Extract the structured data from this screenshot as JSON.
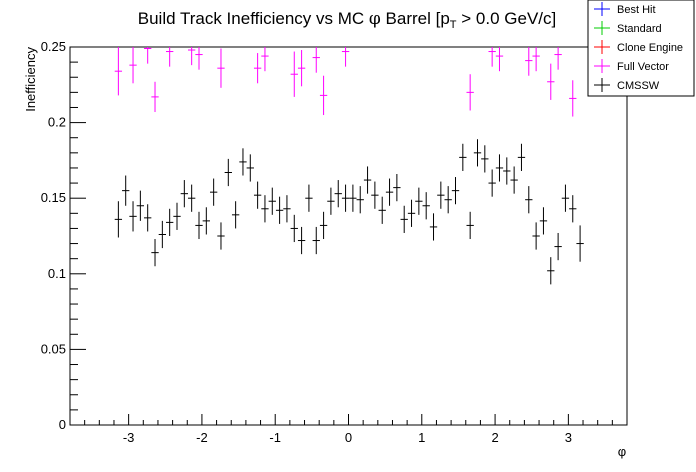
{
  "chart_data": {
    "type": "scatter",
    "title": {
      "main": "Build Track Inefficiency vs MC ",
      "phi": "φ",
      "mid": " Barrel [p",
      "sub": "T",
      "tail": " > 0.0 GeV/c]"
    },
    "xlabel": "φ",
    "ylabel": "Inefficiency",
    "xlim": [
      -3.8,
      3.8
    ],
    "ylim": [
      0,
      0.25
    ],
    "x_ticks": [
      -3,
      -2,
      -1,
      0,
      1,
      2,
      3
    ],
    "x_tick_labels": [
      "-3",
      "-2",
      "-1",
      "0",
      "1",
      "2",
      "3"
    ],
    "y_ticks": [
      0,
      0.05,
      0.1,
      0.15,
      0.2,
      0.25
    ],
    "y_tick_labels": [
      "0",
      "0.05",
      "0.1",
      "0.15",
      "0.2",
      "0.25"
    ],
    "grid": false,
    "legend_placement": "top-right",
    "series": [
      {
        "name": "Best Hit",
        "color": "#0000ff",
        "points": []
      },
      {
        "name": "Standard",
        "color": "#00cc00",
        "points": []
      },
      {
        "name": "Clone Engine",
        "color": "#ff0000",
        "points": []
      },
      {
        "name": "Full Vector",
        "color": "#ff00ff",
        "points": [
          {
            "x": -3.14,
            "y": 0.234,
            "yerr": 0.016
          },
          {
            "x": -2.94,
            "y": 0.238,
            "yerr": 0.012
          },
          {
            "x": -2.74,
            "y": 0.249,
            "yerr": 0.01
          },
          {
            "x": -2.64,
            "y": 0.217,
            "yerr": 0.01
          },
          {
            "x": -2.44,
            "y": 0.247,
            "yerr": 0.01
          },
          {
            "x": -2.14,
            "y": 0.248,
            "yerr": 0.01
          },
          {
            "x": -2.04,
            "y": 0.245,
            "yerr": 0.01
          },
          {
            "x": -1.74,
            "y": 0.236,
            "yerr": 0.013
          },
          {
            "x": -1.24,
            "y": 0.236,
            "yerr": 0.01
          },
          {
            "x": -1.14,
            "y": 0.244,
            "yerr": 0.01
          },
          {
            "x": -0.74,
            "y": 0.232,
            "yerr": 0.015
          },
          {
            "x": -0.64,
            "y": 0.236,
            "yerr": 0.012
          },
          {
            "x": -0.44,
            "y": 0.243,
            "yerr": 0.01
          },
          {
            "x": -0.34,
            "y": 0.218,
            "yerr": 0.013
          },
          {
            "x": -0.04,
            "y": 0.247,
            "yerr": 0.01
          },
          {
            "x": 1.66,
            "y": 0.22,
            "yerr": 0.012
          },
          {
            "x": 1.96,
            "y": 0.247,
            "yerr": 0.01
          },
          {
            "x": 2.06,
            "y": 0.244,
            "yerr": 0.01
          },
          {
            "x": 2.46,
            "y": 0.241,
            "yerr": 0.01
          },
          {
            "x": 2.56,
            "y": 0.244,
            "yerr": 0.01
          },
          {
            "x": 2.76,
            "y": 0.227,
            "yerr": 0.012
          },
          {
            "x": 2.86,
            "y": 0.245,
            "yerr": 0.01
          },
          {
            "x": 3.06,
            "y": 0.216,
            "yerr": 0.012
          }
        ]
      },
      {
        "name": "CMSSW",
        "color": "#000000",
        "points": [
          {
            "x": -3.14,
            "y": 0.136,
            "yerr": 0.012
          },
          {
            "x": -3.04,
            "y": 0.155,
            "yerr": 0.01
          },
          {
            "x": -2.94,
            "y": 0.138,
            "yerr": 0.01
          },
          {
            "x": -2.84,
            "y": 0.145,
            "yerr": 0.01
          },
          {
            "x": -2.74,
            "y": 0.137,
            "yerr": 0.009
          },
          {
            "x": -2.64,
            "y": 0.114,
            "yerr": 0.009
          },
          {
            "x": -2.54,
            "y": 0.126,
            "yerr": 0.009
          },
          {
            "x": -2.44,
            "y": 0.134,
            "yerr": 0.009
          },
          {
            "x": -2.34,
            "y": 0.138,
            "yerr": 0.009
          },
          {
            "x": -2.24,
            "y": 0.153,
            "yerr": 0.009
          },
          {
            "x": -2.14,
            "y": 0.15,
            "yerr": 0.009
          },
          {
            "x": -2.04,
            "y": 0.132,
            "yerr": 0.009
          },
          {
            "x": -1.94,
            "y": 0.135,
            "yerr": 0.009
          },
          {
            "x": -1.84,
            "y": 0.154,
            "yerr": 0.009
          },
          {
            "x": -1.74,
            "y": 0.125,
            "yerr": 0.009
          },
          {
            "x": -1.64,
            "y": 0.167,
            "yerr": 0.009
          },
          {
            "x": -1.54,
            "y": 0.139,
            "yerr": 0.009
          },
          {
            "x": -1.44,
            "y": 0.174,
            "yerr": 0.009
          },
          {
            "x": -1.34,
            "y": 0.17,
            "yerr": 0.009
          },
          {
            "x": -1.24,
            "y": 0.152,
            "yerr": 0.009
          },
          {
            "x": -1.14,
            "y": 0.143,
            "yerr": 0.009
          },
          {
            "x": -1.04,
            "y": 0.148,
            "yerr": 0.009
          },
          {
            "x": -0.94,
            "y": 0.142,
            "yerr": 0.009
          },
          {
            "x": -0.84,
            "y": 0.143,
            "yerr": 0.009
          },
          {
            "x": -0.74,
            "y": 0.13,
            "yerr": 0.009
          },
          {
            "x": -0.64,
            "y": 0.122,
            "yerr": 0.009
          },
          {
            "x": -0.54,
            "y": 0.15,
            "yerr": 0.009
          },
          {
            "x": -0.44,
            "y": 0.122,
            "yerr": 0.009
          },
          {
            "x": -0.34,
            "y": 0.132,
            "yerr": 0.009
          },
          {
            "x": -0.24,
            "y": 0.148,
            "yerr": 0.009
          },
          {
            "x": -0.14,
            "y": 0.153,
            "yerr": 0.009
          },
          {
            "x": -0.04,
            "y": 0.15,
            "yerr": 0.009
          },
          {
            "x": 0.06,
            "y": 0.15,
            "yerr": 0.009
          },
          {
            "x": 0.16,
            "y": 0.149,
            "yerr": 0.009
          },
          {
            "x": 0.26,
            "y": 0.162,
            "yerr": 0.009
          },
          {
            "x": 0.36,
            "y": 0.152,
            "yerr": 0.009
          },
          {
            "x": 0.46,
            "y": 0.142,
            "yerr": 0.009
          },
          {
            "x": 0.56,
            "y": 0.154,
            "yerr": 0.009
          },
          {
            "x": 0.66,
            "y": 0.157,
            "yerr": 0.009
          },
          {
            "x": 0.76,
            "y": 0.136,
            "yerr": 0.009
          },
          {
            "x": 0.86,
            "y": 0.14,
            "yerr": 0.009
          },
          {
            "x": 0.96,
            "y": 0.148,
            "yerr": 0.009
          },
          {
            "x": 1.06,
            "y": 0.145,
            "yerr": 0.009
          },
          {
            "x": 1.16,
            "y": 0.131,
            "yerr": 0.009
          },
          {
            "x": 1.26,
            "y": 0.152,
            "yerr": 0.009
          },
          {
            "x": 1.36,
            "y": 0.149,
            "yerr": 0.009
          },
          {
            "x": 1.46,
            "y": 0.155,
            "yerr": 0.009
          },
          {
            "x": 1.56,
            "y": 0.177,
            "yerr": 0.009
          },
          {
            "x": 1.66,
            "y": 0.132,
            "yerr": 0.009
          },
          {
            "x": 1.76,
            "y": 0.18,
            "yerr": 0.009
          },
          {
            "x": 1.86,
            "y": 0.176,
            "yerr": 0.009
          },
          {
            "x": 1.96,
            "y": 0.16,
            "yerr": 0.009
          },
          {
            "x": 2.06,
            "y": 0.17,
            "yerr": 0.009
          },
          {
            "x": 2.16,
            "y": 0.168,
            "yerr": 0.009
          },
          {
            "x": 2.26,
            "y": 0.162,
            "yerr": 0.009
          },
          {
            "x": 2.36,
            "y": 0.177,
            "yerr": 0.009
          },
          {
            "x": 2.46,
            "y": 0.149,
            "yerr": 0.009
          },
          {
            "x": 2.56,
            "y": 0.125,
            "yerr": 0.009
          },
          {
            "x": 2.66,
            "y": 0.135,
            "yerr": 0.009
          },
          {
            "x": 2.76,
            "y": 0.102,
            "yerr": 0.009
          },
          {
            "x": 2.86,
            "y": 0.118,
            "yerr": 0.009
          },
          {
            "x": 2.96,
            "y": 0.15,
            "yerr": 0.009
          },
          {
            "x": 3.06,
            "y": 0.143,
            "yerr": 0.009
          },
          {
            "x": 3.16,
            "y": 0.12,
            "yerr": 0.012
          }
        ]
      }
    ]
  }
}
